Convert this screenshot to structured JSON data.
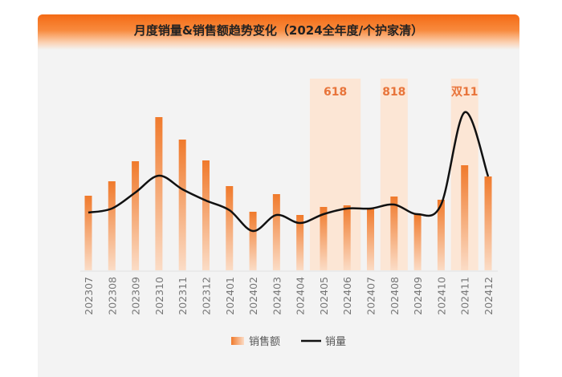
{
  "title": "月度销量&销售额趋势变化（2024全年度/个护家清）",
  "chart_data": {
    "type": "bar+line",
    "title": "月度销量&销售额趋势变化（2024全年度/个护家清）",
    "categories": [
      "202307",
      "202308",
      "202309",
      "202310",
      "202311",
      "202312",
      "202401",
      "202402",
      "202403",
      "202404",
      "202405",
      "202406",
      "202407",
      "202408",
      "202409",
      "202410",
      "202411",
      "202412"
    ],
    "series": [
      {
        "name": "销售额",
        "type": "bar",
        "color": "#f07a2c",
        "values": [
          93,
          111,
          136,
          191,
          163,
          137,
          105,
          73,
          95,
          69,
          79,
          81,
          77,
          92,
          71,
          88,
          131,
          117
        ]
      },
      {
        "name": "销量",
        "type": "line",
        "color": "#111111",
        "values": [
          72,
          77,
          97,
          118,
          101,
          87,
          75,
          49,
          69,
          59,
          70,
          77,
          77,
          82,
          70,
          82,
          197,
          117
        ]
      }
    ],
    "value_units": "relative (no value axis shown)",
    "ylim": [
      0,
      240
    ],
    "highlights": [
      {
        "label": "618",
        "categories": [
          "202405",
          "202406"
        ]
      },
      {
        "label": "818",
        "categories": [
          "202408"
        ]
      },
      {
        "label": "双11",
        "categories": [
          "202411"
        ]
      }
    ],
    "highlight_color": "#fde3cf",
    "legend": {
      "position": "bottom",
      "entries": [
        "销售额",
        "销量"
      ]
    },
    "grid": false
  }
}
